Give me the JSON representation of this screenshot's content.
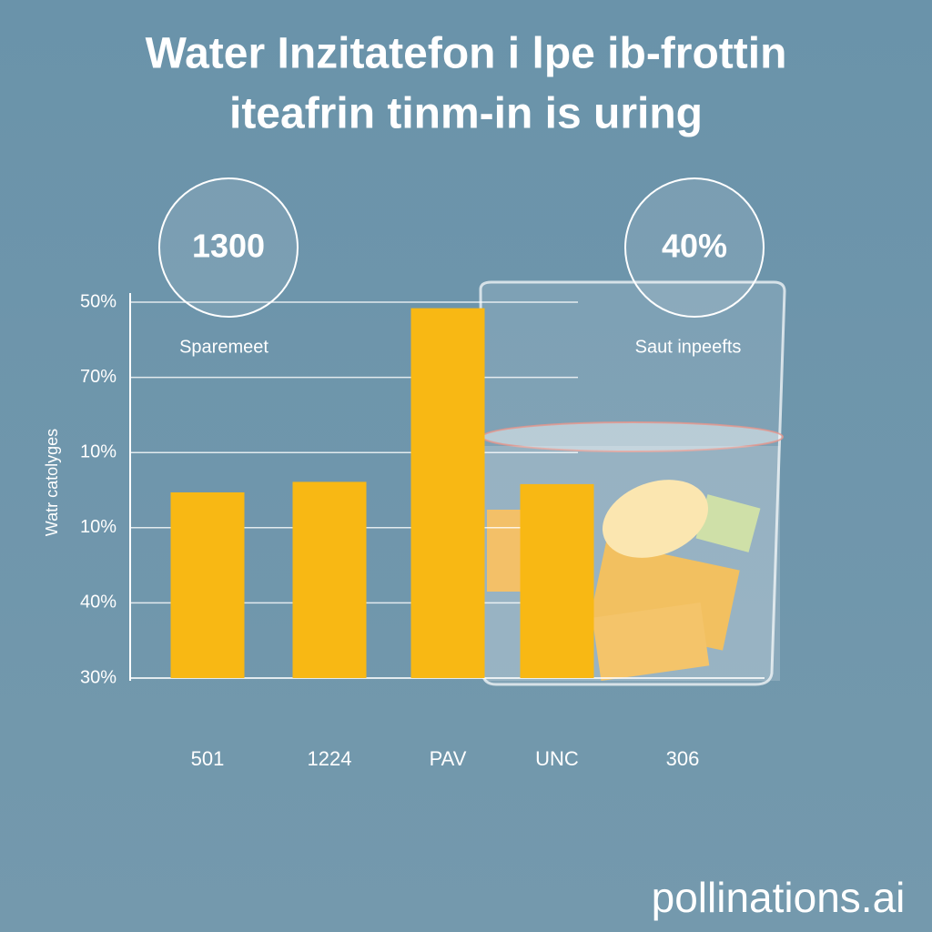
{
  "chart_data": {
    "type": "bar",
    "title": [
      "Water Inzitatefon i lpe ib-frottin",
      "iteafrin tinm-in is uring"
    ],
    "y_axis_title": "Watr catolyges",
    "y_labels": [
      "50%",
      "70%",
      "10%",
      "10%",
      "40%",
      "30%"
    ],
    "categories": [
      "501",
      "1224",
      "PAV",
      "UNC",
      "306"
    ],
    "values": [
      2.47,
      2.61,
      4.92,
      2.58,
      null
    ],
    "ylim": [
      0,
      5
    ],
    "color": "#f8b814",
    "annotations": [
      {
        "value_text": "1300",
        "caption": "Sparemeet"
      },
      {
        "value_text": "40%",
        "caption": "Saut inpeefts"
      }
    ],
    "watermark": "pollinations.ai"
  }
}
